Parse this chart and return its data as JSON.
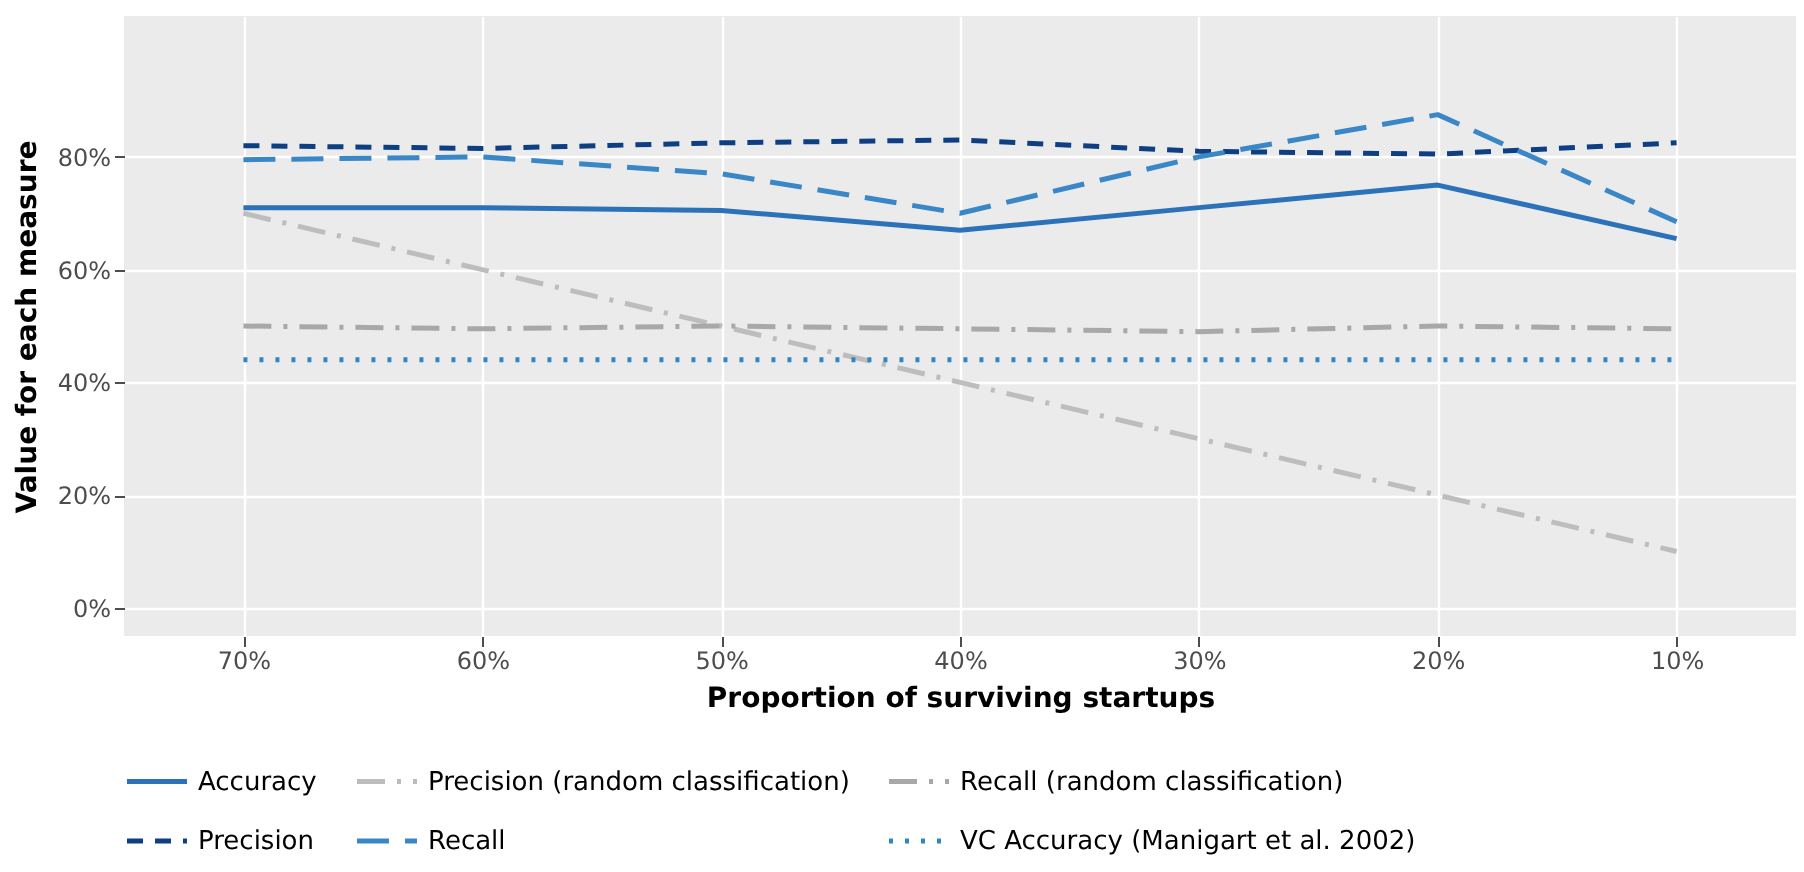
{
  "chart_data": {
    "type": "line",
    "xlabel": "Proportion of surviving startups",
    "ylabel": "Value for each measure",
    "categories": [
      "70%",
      "60%",
      "50%",
      "40%",
      "30%",
      "20%",
      "10%"
    ],
    "ylim": [
      -5,
      105
    ],
    "yticks": [
      {
        "value": 0,
        "label": "0%"
      },
      {
        "value": 20,
        "label": "20%"
      },
      {
        "value": 40,
        "label": "40%"
      },
      {
        "value": 60,
        "label": "60%"
      },
      {
        "value": 80,
        "label": "80%"
      }
    ],
    "grid": true,
    "legend": "bottom",
    "marker": "none",
    "series": [
      {
        "name": "Accuracy",
        "color": "#2b72b8",
        "line_style": "solid",
        "values": [
          71,
          71,
          70.5,
          67,
          71,
          75,
          65.5
        ]
      },
      {
        "name": "Precision",
        "color": "#0d3f82",
        "line_style": "dashed",
        "values": [
          82,
          81.5,
          82.5,
          83,
          81,
          80.5,
          82.5
        ]
      },
      {
        "name": "Precision (random classification)",
        "color": "#bdbdbd",
        "line_style": "dashdot",
        "values": [
          70,
          60,
          50,
          40,
          30,
          20,
          10
        ]
      },
      {
        "name": "Recall",
        "color": "#3a87c8",
        "line_style": "longdash",
        "values": [
          79.5,
          80,
          77,
          70,
          80,
          87.5,
          68.5
        ]
      },
      {
        "name": "Recall (random classification)",
        "color": "#a8a8a8",
        "line_style": "dashdot",
        "values": [
          50,
          49.5,
          50,
          49.5,
          49,
          50,
          49.5
        ]
      },
      {
        "name": "VC Accuracy (Manigart et al. 2002)",
        "color": "#2e86c9",
        "line_style": "dotted",
        "values": [
          44,
          44,
          44,
          44,
          44,
          44,
          44
        ]
      }
    ]
  }
}
